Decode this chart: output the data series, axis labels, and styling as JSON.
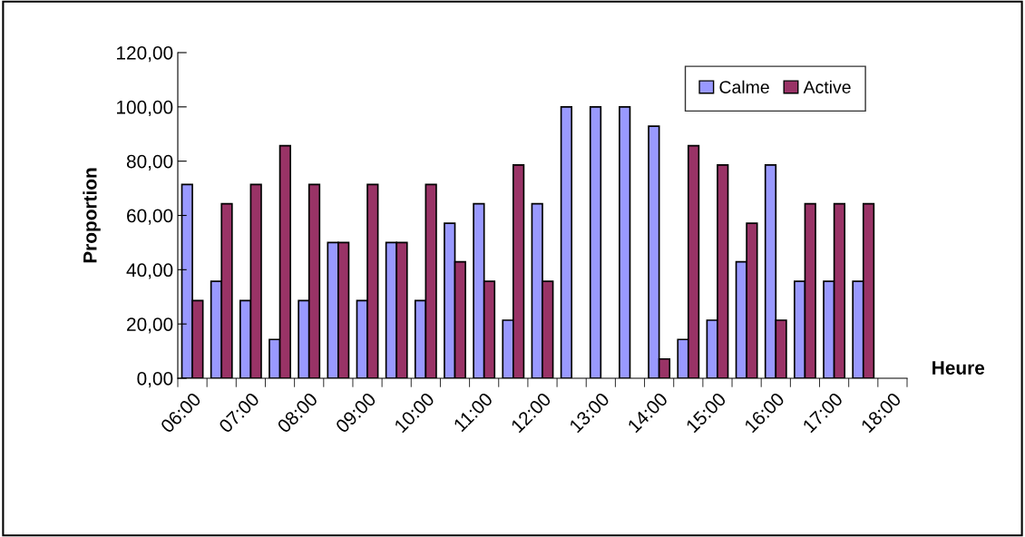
{
  "chart_data": {
    "type": "bar",
    "xlabel": "Heure",
    "ylabel": "Proportion",
    "categories": [
      "06:00",
      null,
      "07:00",
      null,
      "08:00",
      null,
      "09:00",
      null,
      "10:00",
      null,
      "11:00",
      null,
      "12:00",
      null,
      "13:00",
      null,
      "14:00",
      null,
      "15:00",
      null,
      "16:00",
      null,
      "17:00",
      null,
      "18:00"
    ],
    "series": [
      {
        "name": "Calme",
        "color": "#9999ff",
        "values": [
          71.4,
          35.7,
          28.6,
          14.3,
          28.6,
          50,
          28.6,
          50,
          28.6,
          57.1,
          64.3,
          21.4,
          64.3,
          100,
          100,
          100,
          92.9,
          14.3,
          21.4,
          42.9,
          78.6,
          35.7,
          35.7,
          35.7,
          null
        ]
      },
      {
        "name": "Active",
        "color": "#993366",
        "values": [
          28.6,
          64.3,
          71.4,
          85.7,
          71.4,
          50,
          71.4,
          50,
          71.4,
          42.9,
          35.7,
          78.6,
          35.7,
          null,
          null,
          null,
          7.1,
          85.7,
          78.6,
          57.1,
          21.4,
          64.3,
          64.3,
          64.3,
          null
        ]
      }
    ],
    "ylim": [
      0,
      120
    ],
    "yticks": [
      {
        "value": 0,
        "label": "0,00"
      },
      {
        "value": 20,
        "label": "20,00"
      },
      {
        "value": 40,
        "label": "40,00"
      },
      {
        "value": 60,
        "label": "60,00"
      },
      {
        "value": 80,
        "label": "80,00"
      },
      {
        "value": 100,
        "label": "100,00"
      },
      {
        "value": 120,
        "label": "120,00"
      }
    ],
    "grid": false,
    "legend": "top right"
  }
}
